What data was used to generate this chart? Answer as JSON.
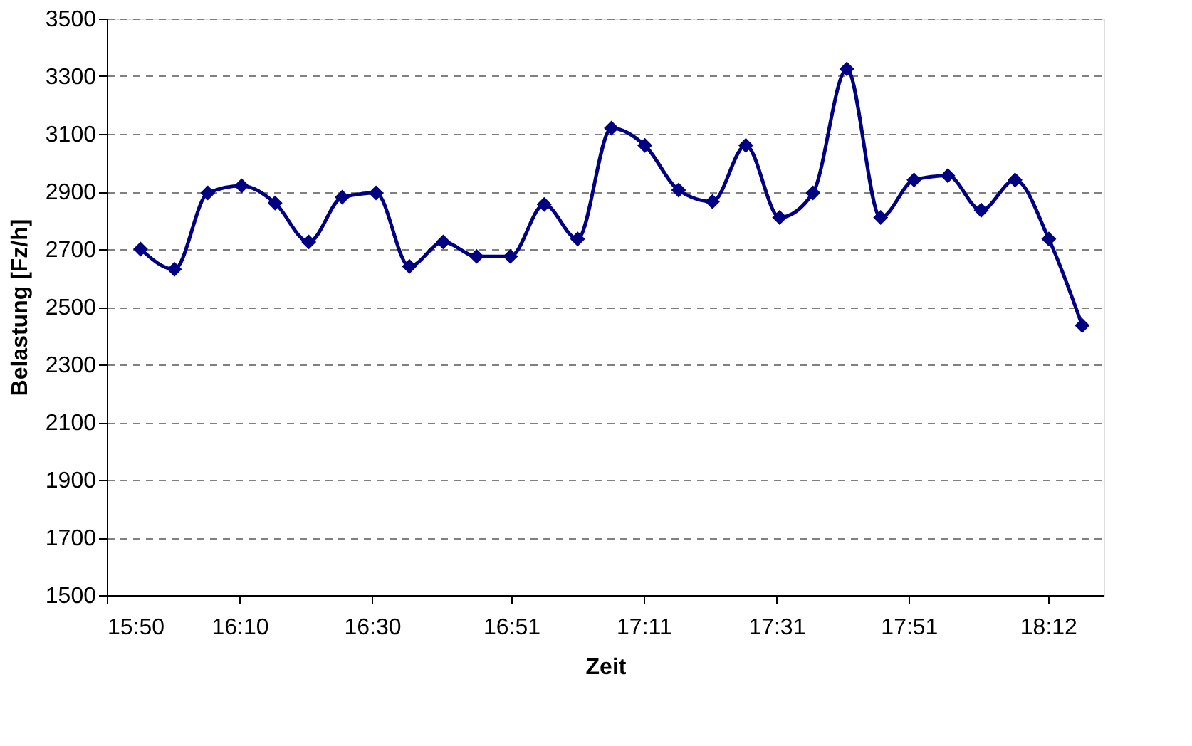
{
  "chart_data": {
    "type": "line",
    "xlabel": "Zeit",
    "ylabel": "Belastung [Fz/h]",
    "x": [
      15.918,
      16.003,
      16.087,
      16.172,
      16.256,
      16.341,
      16.425,
      16.51,
      16.594,
      16.679,
      16.763,
      16.848,
      16.933,
      17.017,
      17.102,
      17.186,
      17.271,
      17.356,
      17.44,
      17.525,
      17.609,
      17.694,
      17.779,
      17.863,
      17.948,
      18.032,
      18.117,
      18.202,
      18.286
    ],
    "series": [
      {
        "color": "#000080",
        "values": [
          2700,
          2630,
          2895,
          2920,
          2860,
          2725,
          2880,
          2895,
          2640,
          2725,
          2675,
          2675,
          2855,
          2735,
          3120,
          3060,
          2905,
          2865,
          3060,
          2810,
          2895,
          3325,
          2810,
          2940,
          2955,
          2835,
          2940,
          2735,
          2435
        ]
      }
    ],
    "xlim": [
      15.833,
      18.34
    ],
    "xticks": [
      {
        "value": 15.833,
        "label": "15:50"
      },
      {
        "value": 16.167,
        "label": "16:10"
      },
      {
        "value": 16.5,
        "label": "16:30"
      },
      {
        "value": 16.85,
        "label": "16:51"
      },
      {
        "value": 17.183,
        "label": "17:11"
      },
      {
        "value": 17.517,
        "label": "17:31"
      },
      {
        "value": 17.85,
        "label": "17:51"
      },
      {
        "value": 18.2,
        "label": "18:12"
      }
    ],
    "ylim": [
      1500,
      3500
    ],
    "yticks": [
      1500,
      1700,
      1900,
      2100,
      2300,
      2500,
      2700,
      2900,
      3100,
      3300,
      3500
    ],
    "grid": "y",
    "marker": "diamond",
    "line_style": "solid"
  }
}
